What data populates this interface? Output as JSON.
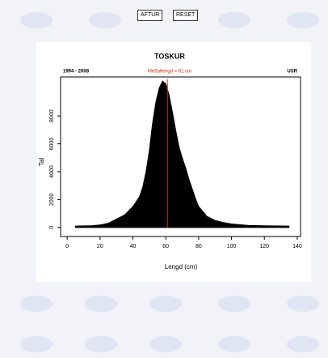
{
  "buttons": [
    "AFTUR",
    "RESET"
  ],
  "chart_data": {
    "type": "area",
    "title": "TOSKUR",
    "subtitle_left": "1994 - 2008",
    "subtitle_center": "Meðallengd = 61 cm",
    "subtitle_right": "USR",
    "x_label": "Lengd (cm)",
    "y_label": "Tal",
    "color": "#000000",
    "mean_color": "#cc3300",
    "mean": 61,
    "x": [
      5,
      10,
      15,
      20,
      25,
      30,
      35,
      40,
      44,
      46,
      48,
      50,
      52,
      54,
      56,
      58,
      60,
      62,
      64,
      66,
      68,
      70,
      72,
      74,
      76,
      78,
      80,
      85,
      90,
      95,
      100,
      110,
      120,
      135
    ],
    "values": [
      100,
      110,
      130,
      180,
      300,
      600,
      900,
      1500,
      2200,
      2900,
      4000,
      5500,
      7500,
      9000,
      10000,
      10500,
      10300,
      9500,
      8300,
      7000,
      5800,
      5000,
      4300,
      3500,
      2800,
      2100,
      1500,
      800,
      500,
      350,
      250,
      150,
      120,
      100
    ],
    "xlim": [
      -4,
      142
    ],
    "ylim": [
      -650,
      10800
    ],
    "xticks": [
      0,
      20,
      40,
      60,
      80,
      100,
      120,
      140
    ],
    "yticks": [
      0,
      2000,
      4000,
      6000,
      8000
    ]
  }
}
